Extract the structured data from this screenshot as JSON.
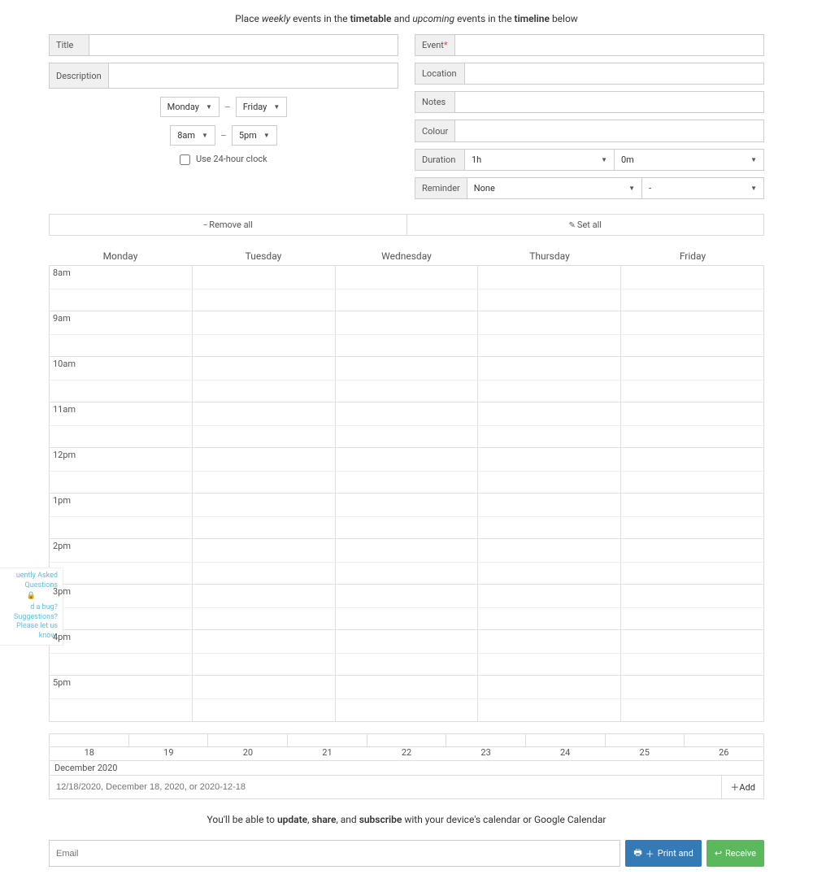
{
  "intro": {
    "prefix": "Place ",
    "weekly": "weekly",
    "mid1": " events in the ",
    "timetable": "timetable",
    "mid2": " and ",
    "upcoming": "upcoming",
    "mid3": " events in the ",
    "timeline": "timeline",
    "suffix": " below"
  },
  "left": {
    "title_label": "Title",
    "desc_label": "Description",
    "day_from": "Monday",
    "day_to": "Friday",
    "time_from": "8am",
    "time_to": "5pm",
    "clock24_label": "Use 24-hour clock"
  },
  "right": {
    "event_label": "Event ",
    "location_label": "Location",
    "notes_label": "Notes",
    "colour_label": "Colour",
    "duration_label": "Duration",
    "duration_h": "1h",
    "duration_m": "0m",
    "reminder_label": "Reminder",
    "reminder_val": "None",
    "reminder_unit": "-"
  },
  "actions": {
    "remove_all": "Remove all",
    "set_all": "Set all"
  },
  "days": [
    "Monday",
    "Tuesday",
    "Wednesday",
    "Thursday",
    "Friday"
  ],
  "hours": [
    "8am",
    "9am",
    "10am",
    "11am",
    "12pm",
    "1pm",
    "2pm",
    "3pm",
    "4pm",
    "5pm"
  ],
  "timeline": {
    "dates": [
      "18",
      "19",
      "20",
      "21",
      "22",
      "23",
      "24",
      "25",
      "26"
    ],
    "month": "December 2020",
    "placeholder": "12/18/2020, December 18, 2020, or 2020-12-18",
    "add_label": "Add"
  },
  "footer": {
    "prefix": "You'll be able to ",
    "update": "update",
    "sep1": ", ",
    "share": "share",
    "sep2": ", and ",
    "subscribe": "subscribe",
    "suffix": " with your device's calendar or Google Calendar"
  },
  "email": {
    "placeholder": "Email",
    "print_label": "Print and",
    "receive_label": "Receive"
  },
  "faq": {
    "l1": "uently Asked Questions",
    "l2": "d a bug? Suggestions?",
    "l3": "Please let us know."
  }
}
